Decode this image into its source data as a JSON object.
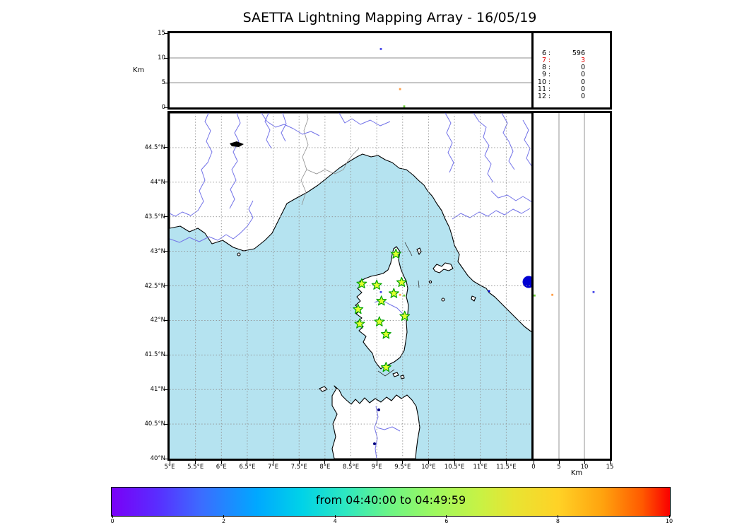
{
  "title": "SAETTA Lightning Mapping Array - 16/05/19",
  "axis": {
    "alt_label_left": "Km",
    "alt_label_bottom": "Km"
  },
  "counter_panel": {
    "rows": [
      {
        "label": "6",
        "sep": ":",
        "value": "596",
        "color": "#000000"
      },
      {
        "label": "7",
        "sep": ":",
        "value": "3",
        "color": "#e60000"
      },
      {
        "label": "8",
        "sep": ":",
        "value": "0",
        "color": "#000000"
      },
      {
        "label": "9",
        "sep": ":",
        "value": "0",
        "color": "#000000"
      },
      {
        "label": "10",
        "sep": ":",
        "value": "0",
        "color": "#000000"
      },
      {
        "label": "11",
        "sep": ":",
        "value": "0",
        "color": "#000000"
      },
      {
        "label": "12",
        "sep": ":",
        "value": "0",
        "color": "#000000"
      }
    ]
  },
  "colors": {
    "sea": "#b5e3f0",
    "land": "#ffffff",
    "coast": "#000000",
    "river": "#7373e8",
    "border_line": "#8f8f8f",
    "grid": "#909090",
    "panel_grid": "#666666",
    "star_fill": "#e2ff2e",
    "star_edge": "#00a300",
    "lake_dark": "#000000",
    "lake_blue": "#0000d2"
  },
  "chart_data": {
    "type": "scatter",
    "map_panel": {
      "lon_range": [
        5,
        12
      ],
      "lat_range": [
        40,
        45
      ],
      "grid_step_deg": 0.5,
      "lon_ticks": [
        {
          "v": 5,
          "label": "5°E"
        },
        {
          "v": 5.5,
          "label": "5.5°E"
        },
        {
          "v": 6,
          "label": "6°E"
        },
        {
          "v": 6.5,
          "label": "6.5°E"
        },
        {
          "v": 7,
          "label": "7°E"
        },
        {
          "v": 7.5,
          "label": "7.5°E"
        },
        {
          "v": 8,
          "label": "8°E"
        },
        {
          "v": 8.5,
          "label": "8.5°E"
        },
        {
          "v": 9,
          "label": "9°E"
        },
        {
          "v": 9.5,
          "label": "9.5°E"
        },
        {
          "v": 10,
          "label": "10°E"
        },
        {
          "v": 10.5,
          "label": "10.5°E"
        },
        {
          "v": 11,
          "label": "11°E"
        },
        {
          "v": 11.5,
          "label": "11.5°E"
        }
      ],
      "lat_ticks": [
        {
          "v": 44.5,
          "label": "44.5°N"
        },
        {
          "v": 44,
          "label": "44°N"
        },
        {
          "v": 43.5,
          "label": "43.5°N"
        },
        {
          "v": 43,
          "label": "43°N"
        },
        {
          "v": 42.5,
          "label": "42.5°N"
        },
        {
          "v": 42,
          "label": "42°N"
        },
        {
          "v": 41.5,
          "label": "41.5°N"
        },
        {
          "v": 41,
          "label": "41°N"
        },
        {
          "v": 40.5,
          "label": "40.5°N"
        },
        {
          "v": 40,
          "label": "40°N"
        }
      ]
    },
    "altitude_panels": {
      "range_km": [
        0,
        15
      ],
      "ticks": [
        {
          "v": 0,
          "label": "0"
        },
        {
          "v": 5,
          "label": "5"
        },
        {
          "v": 10,
          "label": "10"
        },
        {
          "v": 15,
          "label": "15"
        }
      ],
      "gridlines_km": [
        5,
        10
      ]
    },
    "stations": [
      {
        "lon": 9.37,
        "lat": 42.96
      },
      {
        "lon": 8.71,
        "lat": 42.53
      },
      {
        "lon": 9.0,
        "lat": 42.51
      },
      {
        "lon": 9.48,
        "lat": 42.55
      },
      {
        "lon": 9.33,
        "lat": 42.39
      },
      {
        "lon": 9.09,
        "lat": 42.28
      },
      {
        "lon": 8.64,
        "lat": 42.16
      },
      {
        "lon": 9.54,
        "lat": 42.06
      },
      {
        "lon": 9.05,
        "lat": 41.98
      },
      {
        "lon": 8.67,
        "lat": 41.95
      },
      {
        "lon": 9.18,
        "lat": 41.8
      },
      {
        "lon": 9.18,
        "lat": 41.32
      }
    ],
    "sources": [
      {
        "lon": 9.08,
        "lat": 42.41,
        "alt_km": 11.8,
        "color": "#4646e8"
      },
      {
        "lon": 9.45,
        "lat": 42.37,
        "alt_km": 3.7,
        "color": "#ff9e47"
      },
      {
        "lon": 9.53,
        "lat": 42.36,
        "alt_km": 0.2,
        "color": "#70d23c"
      }
    ],
    "colorbar": {
      "title": "from 04:40:00 to 04:49:59",
      "range": [
        0,
        10
      ],
      "ticks": [
        {
          "v": 0,
          "label": "0"
        },
        {
          "v": 2,
          "label": "2"
        },
        {
          "v": 4,
          "label": "4"
        },
        {
          "v": 6,
          "label": "6"
        },
        {
          "v": 8,
          "label": "8"
        },
        {
          "v": 10,
          "label": "10"
        }
      ]
    }
  }
}
